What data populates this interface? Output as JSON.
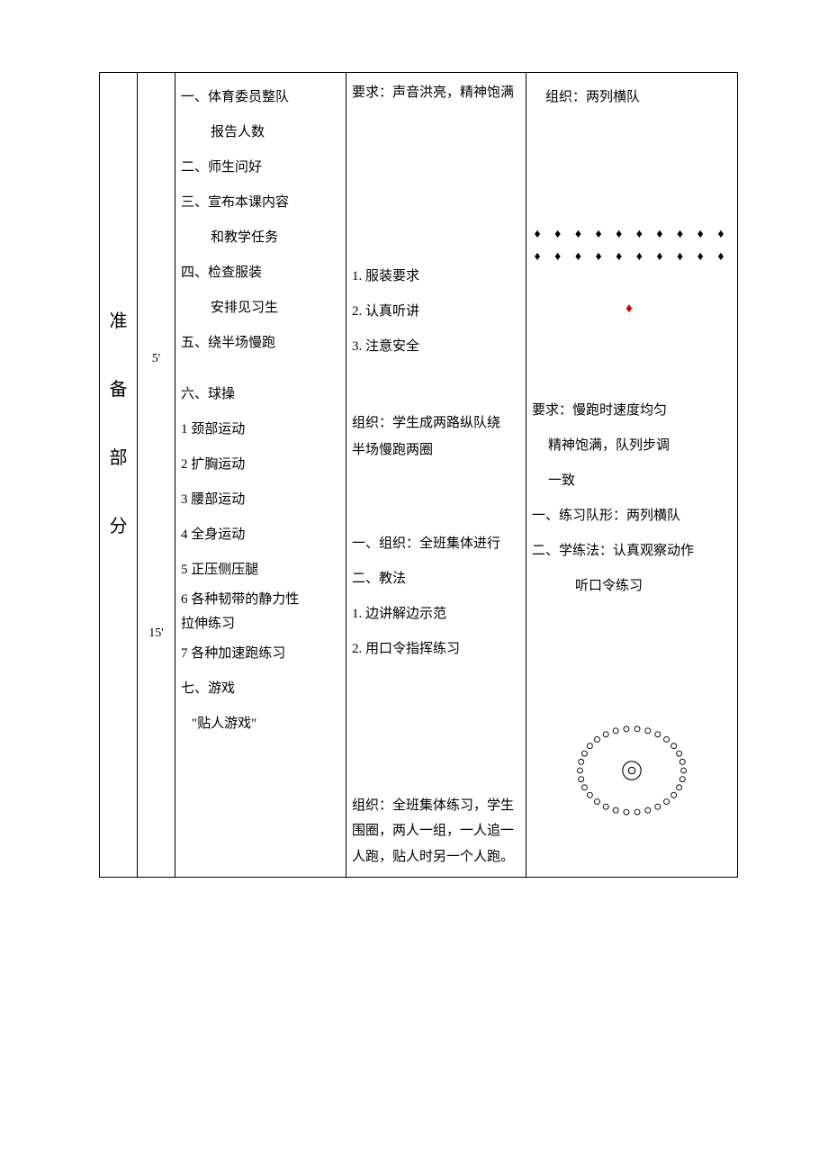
{
  "section": {
    "label_chars": [
      "准",
      "备",
      "部",
      "分"
    ]
  },
  "time": {
    "t1": "5'",
    "t2": "15'"
  },
  "content": {
    "l1": "一、体育委员整队",
    "l1b": "报告人数",
    "l2": "二、师生问好",
    "l3": "三、宣布本课内容",
    "l3b": "和教学任务",
    "l4": "四、检查服装",
    "l4b": "安排见习生",
    "l5": "五、绕半场慢跑",
    "l6": "六、球操",
    "e1": "1 颈部运动",
    "e2": "2 扩胸运动",
    "e3": "3 腰部运动",
    "e4": "4 全身运动",
    "e5": "5 正压侧压腿",
    "e6a": "6 各种韧带的静力性",
    "e6b": "拉伸练习",
    "e7": "7 各种加速跑练习",
    "l7": "七、游戏",
    "l7b": "\"贴人游戏\""
  },
  "method": {
    "req_top": "要求：声音洪亮，精神饱满",
    "m1": "1.  服装要求",
    "m2": "2.  认真听讲",
    "m3": "3.  注意安全",
    "org_jog1": "组织：学生成两路纵队绕",
    "org_jog2": "半场慢跑两圈",
    "org_all": "一、组织：全班集体进行",
    "teach_head": "二、教法",
    "teach1": "1.  边讲解边示范",
    "teach2": "2.  用口令指挥练习",
    "game1": "组织：全班集体练习，学生",
    "game2": "围圈，两人一组，一人追一",
    "game3": "人跑，贴人时另一个人跑。"
  },
  "org": {
    "formation_label": "组织：两列横队",
    "row1": "♦ ♦ ♦ ♦ ♦ ♦ ♦ ♦ ♦ ♦",
    "row2": "♦ ♦ ♦ ♦ ♦ ♦ ♦ ♦ ♦ ♦",
    "teacher": "♦",
    "jog_req1": "要求：慢跑时速度均匀",
    "jog_req2": "精神饱满，队列步调",
    "jog_req3": "一致",
    "pform": "一、练习队形：两列横队",
    "plearn1": "二、学练法：认真观察动作",
    "plearn2": "听口令练习"
  },
  "style": {
    "border_color": "#000000",
    "text_color": "#000000",
    "teacher_color": "#d00000",
    "background": "#ffffff",
    "circle_outline": "#000000",
    "circle_dot_fill": "#ffffff",
    "circle_dot_stroke": "#000000"
  }
}
